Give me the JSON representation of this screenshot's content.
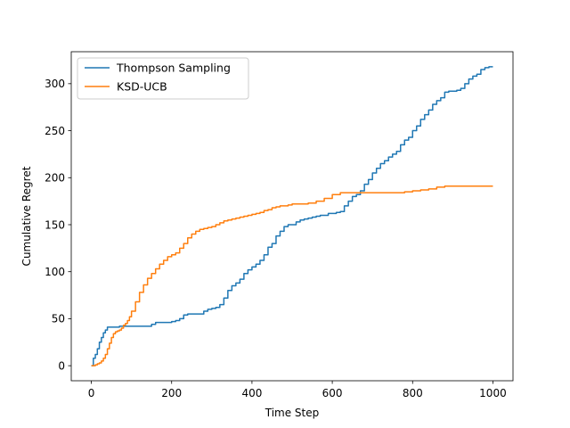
{
  "chart_data": {
    "type": "line",
    "xlabel": "Time Step",
    "ylabel": "Cumulative Regret",
    "xlim": [
      -50,
      1050
    ],
    "ylim": [
      -16,
      334
    ],
    "xticks": [
      0,
      200,
      400,
      600,
      800,
      1000
    ],
    "yticks": [
      0,
      50,
      100,
      150,
      200,
      250,
      300
    ],
    "grid": false,
    "legend_position": "top-left",
    "series": [
      {
        "name": "Thompson Sampling",
        "color": "#1f77b4",
        "x": [
          0,
          5,
          10,
          15,
          20,
          25,
          30,
          35,
          40,
          45,
          50,
          60,
          70,
          80,
          90,
          100,
          110,
          120,
          130,
          140,
          150,
          160,
          170,
          180,
          190,
          200,
          210,
          220,
          230,
          240,
          250,
          260,
          270,
          280,
          290,
          300,
          310,
          320,
          330,
          340,
          350,
          360,
          370,
          380,
          390,
          400,
          410,
          420,
          430,
          440,
          450,
          460,
          470,
          480,
          490,
          500,
          510,
          520,
          530,
          540,
          550,
          560,
          570,
          580,
          590,
          600,
          610,
          620,
          630,
          640,
          650,
          660,
          670,
          680,
          690,
          700,
          710,
          720,
          730,
          740,
          750,
          760,
          770,
          780,
          790,
          800,
          810,
          820,
          830,
          840,
          850,
          860,
          870,
          880,
          890,
          900,
          910,
          920,
          930,
          940,
          950,
          960,
          970,
          980,
          990,
          1000
        ],
        "y": [
          0,
          8,
          12,
          18,
          25,
          30,
          35,
          38,
          41,
          41,
          41,
          41,
          42,
          42,
          42,
          42,
          42,
          42,
          42,
          42,
          44,
          46,
          46,
          46,
          46,
          47,
          48,
          50,
          54,
          55,
          55,
          55,
          55,
          58,
          60,
          61,
          62,
          65,
          72,
          80,
          85,
          88,
          92,
          98,
          102,
          105,
          108,
          112,
          118,
          126,
          130,
          138,
          143,
          148,
          150,
          150,
          153,
          155,
          156,
          157,
          158,
          159,
          160,
          160,
          162,
          162,
          163,
          164,
          170,
          175,
          180,
          182,
          186,
          193,
          198,
          205,
          210,
          215,
          218,
          222,
          225,
          228,
          235,
          240,
          243,
          250,
          255,
          262,
          267,
          272,
          278,
          282,
          285,
          291,
          292,
          292,
          293,
          295,
          300,
          305,
          308,
          310,
          315,
          317,
          318,
          318
        ]
      },
      {
        "name": "KSD-UCB",
        "color": "#ff7f0e",
        "x": [
          0,
          5,
          10,
          15,
          20,
          25,
          30,
          35,
          40,
          45,
          50,
          55,
          60,
          65,
          70,
          75,
          80,
          85,
          90,
          95,
          100,
          110,
          120,
          130,
          140,
          150,
          160,
          170,
          180,
          190,
          200,
          210,
          220,
          230,
          240,
          250,
          260,
          270,
          280,
          290,
          300,
          310,
          320,
          330,
          340,
          350,
          360,
          370,
          380,
          390,
          400,
          410,
          420,
          430,
          440,
          450,
          460,
          470,
          480,
          490,
          500,
          520,
          540,
          560,
          580,
          600,
          620,
          640,
          660,
          680,
          700,
          720,
          740,
          760,
          780,
          800,
          820,
          840,
          860,
          880,
          900,
          920,
          940,
          960,
          980,
          1000
        ],
        "y": [
          0,
          0,
          1,
          2,
          3,
          5,
          8,
          12,
          18,
          24,
          30,
          34,
          36,
          37,
          38,
          40,
          43,
          45,
          48,
          52,
          58,
          68,
          78,
          86,
          93,
          98,
          103,
          108,
          112,
          116,
          118,
          120,
          125,
          130,
          136,
          140,
          143,
          145,
          146,
          147,
          148,
          150,
          152,
          154,
          155,
          156,
          157,
          158,
          159,
          160,
          161,
          162,
          163,
          165,
          166,
          168,
          169,
          170,
          170,
          171,
          172,
          172,
          173,
          175,
          178,
          182,
          184,
          184,
          184,
          184,
          184,
          184,
          184,
          184,
          185,
          186,
          187,
          188,
          190,
          191,
          191,
          191,
          191,
          191,
          191,
          191
        ]
      }
    ]
  }
}
